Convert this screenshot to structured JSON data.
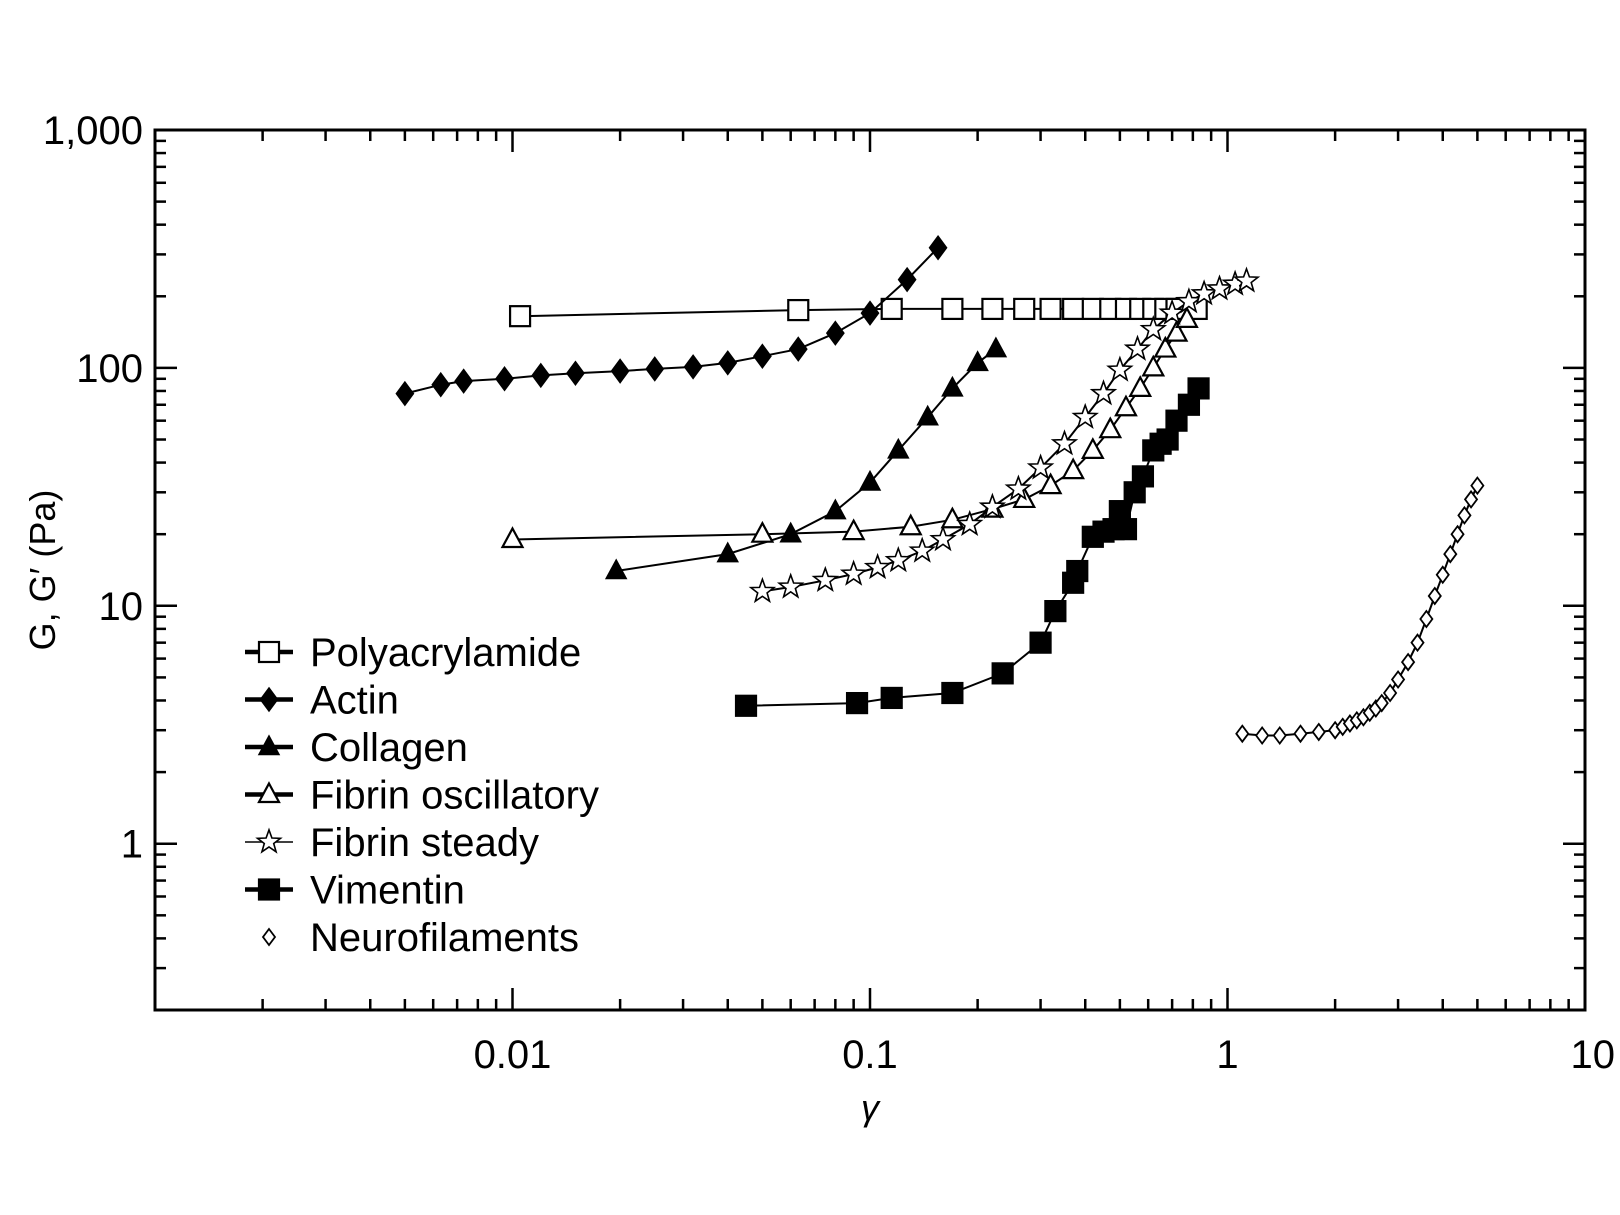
{
  "chart_data": {
    "type": "scatter",
    "xscale": "log",
    "yscale": "log",
    "xlim": [
      0.001,
      10
    ],
    "ylim": [
      0.2,
      1000
    ],
    "xlabel": "γ",
    "ylabel": "G, G′ (Pa)",
    "x_ticks": [
      0.01,
      0.1,
      1,
      10
    ],
    "x_tick_labels": [
      "0.01",
      "0.1",
      "1",
      "10"
    ],
    "y_ticks": [
      1,
      10,
      100,
      1000
    ],
    "y_tick_labels": [
      "1",
      "10",
      "100",
      "1,000"
    ],
    "grid": false,
    "legend_position": "lower-left",
    "series": [
      {
        "name": "Polyacrylamide",
        "marker": "square-open",
        "x": [
          0.0105,
          0.063,
          0.115,
          0.17,
          0.22,
          0.27,
          0.32,
          0.37,
          0.42,
          0.47,
          0.52,
          0.57,
          0.62,
          0.67,
          0.72,
          0.82
        ],
        "y": [
          165,
          175,
          177,
          177,
          177,
          177,
          177,
          177,
          177,
          177,
          177,
          177,
          177,
          177,
          177,
          177
        ]
      },
      {
        "name": "Actin",
        "marker": "diamond-filled",
        "x": [
          0.005,
          0.0063,
          0.0073,
          0.0095,
          0.012,
          0.015,
          0.02,
          0.025,
          0.032,
          0.04,
          0.05,
          0.063,
          0.08,
          0.1,
          0.127,
          0.155
        ],
        "y": [
          78,
          85,
          88,
          90,
          93,
          95,
          97,
          99,
          101,
          105,
          112,
          120,
          140,
          170,
          235,
          320
        ]
      },
      {
        "name": "Collagen",
        "marker": "triangle-filled",
        "x": [
          0.0195,
          0.04,
          0.06,
          0.08,
          0.1,
          0.12,
          0.145,
          0.17,
          0.2,
          0.225
        ],
        "y": [
          14,
          16.5,
          20,
          25,
          33,
          45,
          62,
          82,
          105,
          120
        ]
      },
      {
        "name": "Fibrin oscillatory",
        "marker": "triangle-open",
        "x": [
          0.01,
          0.05,
          0.09,
          0.13,
          0.17,
          0.22,
          0.27,
          0.32,
          0.37,
          0.42,
          0.47,
          0.52,
          0.57,
          0.62,
          0.67,
          0.72,
          0.77
        ],
        "y": [
          19,
          20,
          20.5,
          21.5,
          23,
          25.5,
          28,
          32,
          37,
          45,
          55,
          68,
          82,
          100,
          120,
          140,
          160
        ]
      },
      {
        "name": "Fibrin steady",
        "marker": "star-open",
        "x": [
          0.05,
          0.06,
          0.075,
          0.09,
          0.105,
          0.12,
          0.14,
          0.16,
          0.19,
          0.22,
          0.26,
          0.3,
          0.35,
          0.4,
          0.45,
          0.5,
          0.56,
          0.62,
          0.7,
          0.78,
          0.86,
          0.95,
          1.05,
          1.13
        ],
        "y": [
          11.5,
          12,
          12.8,
          13.6,
          14.5,
          15.5,
          17,
          19,
          22,
          26,
          31,
          38,
          48,
          62,
          78,
          98,
          120,
          145,
          170,
          190,
          205,
          215,
          225,
          232
        ]
      },
      {
        "name": "Vimentin",
        "marker": "square-filled",
        "x": [
          0.045,
          0.092,
          0.115,
          0.17,
          0.235,
          0.3,
          0.33,
          0.37,
          0.38,
          0.42,
          0.45,
          0.48,
          0.5,
          0.52,
          0.55,
          0.58,
          0.62,
          0.65,
          0.68,
          0.72,
          0.78,
          0.83
        ],
        "y": [
          3.8,
          3.9,
          4.1,
          4.3,
          5.2,
          7.0,
          9.5,
          12.5,
          14.0,
          19.5,
          20.5,
          21.0,
          25,
          21.0,
          30,
          35,
          45,
          48,
          50,
          60,
          70,
          82
        ]
      },
      {
        "name": "Neurofilaments",
        "marker": "diamond-open",
        "x": [
          1.1,
          1.25,
          1.4,
          1.6,
          1.8,
          2.0,
          2.1,
          2.2,
          2.3,
          2.4,
          2.5,
          2.6,
          2.7,
          2.85,
          3.0,
          3.2,
          3.4,
          3.6,
          3.8,
          4.0,
          4.2,
          4.4,
          4.6,
          4.8,
          5.0
        ],
        "y": [
          2.9,
          2.85,
          2.85,
          2.9,
          2.95,
          3.0,
          3.1,
          3.2,
          3.3,
          3.4,
          3.55,
          3.7,
          3.9,
          4.3,
          4.9,
          5.8,
          7.0,
          8.8,
          11,
          13.5,
          16.5,
          20,
          24,
          28,
          32
        ]
      }
    ]
  }
}
